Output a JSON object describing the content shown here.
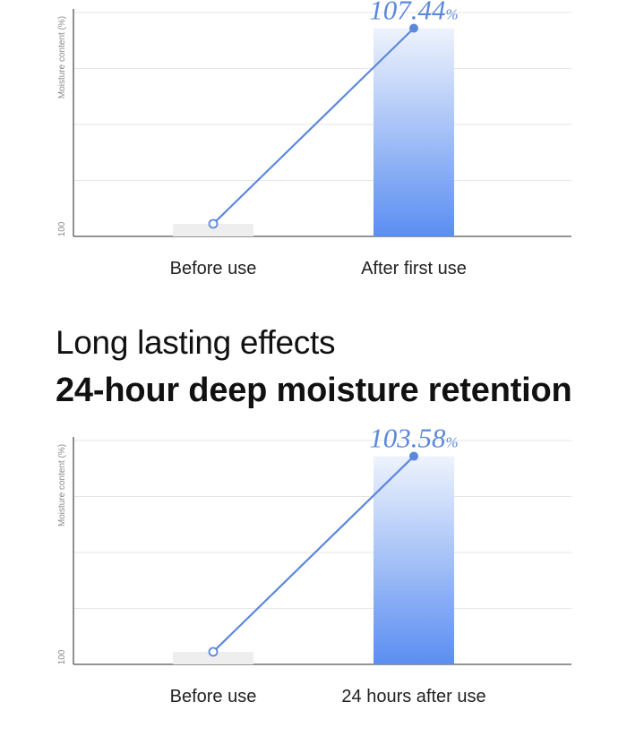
{
  "section": {
    "subtitle": "Long lasting effects",
    "title": "24-hour deep moisture retention"
  },
  "colors": {
    "bar_top": "#eef3fd",
    "bar_bottom": "#5b8ef2",
    "line": "#5c88db",
    "value_label": "#5c88db",
    "baseline_bar": "#eeeeee",
    "axis": "#555555",
    "grid": "#e6e6e6"
  },
  "chart_data": [
    {
      "type": "bar",
      "ylabel": "Moisture content (%)",
      "ytick_label": "100",
      "categories": [
        "Before use",
        "After first use"
      ],
      "values": [
        100,
        107.44
      ],
      "value_label": {
        "number": "107.44",
        "unit": "%"
      },
      "overlay": "line connecting bar tops",
      "ylim": [
        100,
        108
      ],
      "grid": true,
      "gridlines": 4
    },
    {
      "type": "bar",
      "ylabel": "Moisture content (%)",
      "ytick_label": "100",
      "categories": [
        "Before use",
        "24 hours after use"
      ],
      "values": [
        100,
        103.58
      ],
      "value_label": {
        "number": "103.58",
        "unit": "%"
      },
      "overlay": "line connecting bar tops",
      "ylim": [
        100,
        103.85
      ],
      "grid": true,
      "gridlines": 4
    }
  ]
}
